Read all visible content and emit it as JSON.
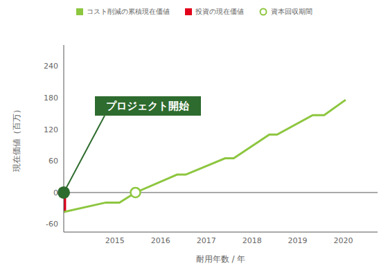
{
  "chart_data": {
    "type": "line",
    "x_label": "耐用年数 / 年",
    "y_label": "現在価値（百万）",
    "xlim": [
      2013.88,
      2020.75
    ],
    "xticks": [
      2015,
      2016,
      2017,
      2018,
      2019,
      2020
    ],
    "ylim": [
      -75,
      280
    ],
    "yticks": [
      -60,
      0,
      60,
      120,
      180,
      240
    ],
    "grid": false,
    "legend": "top",
    "series": [
      {
        "name": "コスト削減の累積現在価値",
        "type": "line",
        "color": "#8dc63f",
        "x": [
          2013.88,
          2014.8,
          2015.1,
          2015.45,
          2016.36,
          2016.55,
          2017.41,
          2017.6,
          2018.38,
          2018.55,
          2019.33,
          2019.58,
          2020.05
        ],
        "values": [
          -37,
          -19,
          -19,
          0,
          34,
          34,
          65,
          65,
          110,
          110,
          147,
          147,
          176
        ]
      },
      {
        "name": "投資の現在価値",
        "type": "bar",
        "color": "#e2001a",
        "x": [
          2013.88
        ],
        "values": [
          -37
        ]
      },
      {
        "name": "資本回収期間",
        "type": "scatter",
        "marker": "open_circle",
        "color": "#8dc63f",
        "x": [
          2015.45
        ],
        "values": [
          0
        ]
      }
    ],
    "annotations": [
      {
        "text": "プロジェクト開始",
        "x": 2013.88,
        "y": 0
      }
    ]
  }
}
